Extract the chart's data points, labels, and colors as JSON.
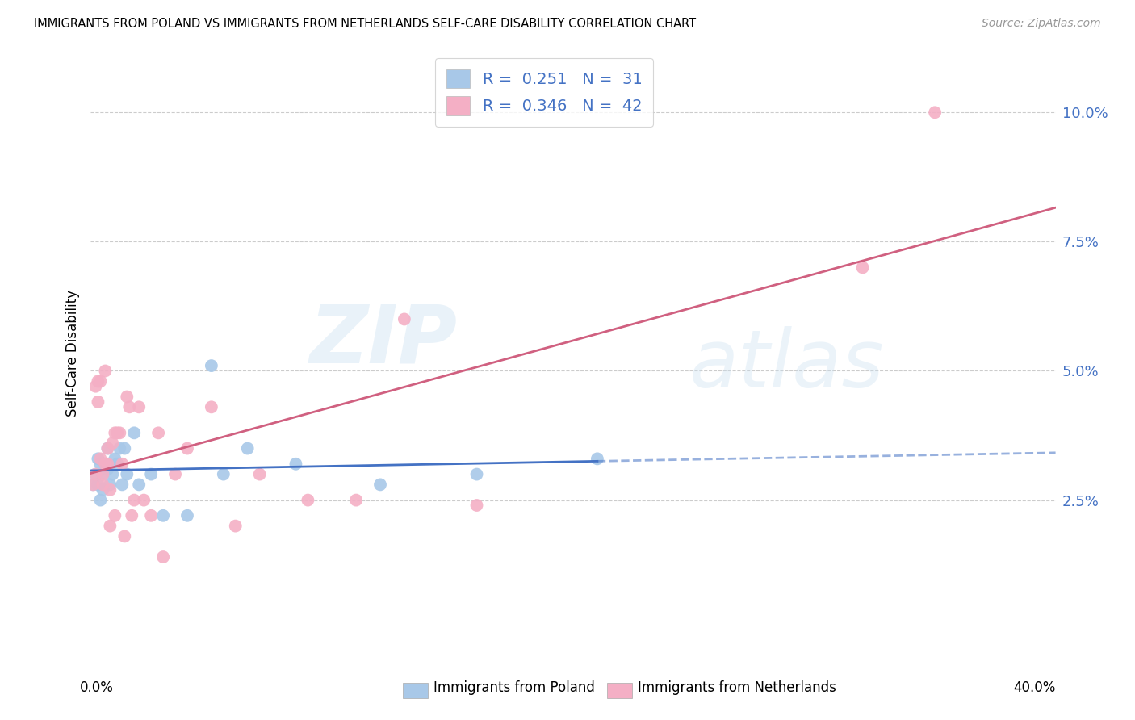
{
  "title": "IMMIGRANTS FROM POLAND VS IMMIGRANTS FROM NETHERLANDS SELF-CARE DISABILITY CORRELATION CHART",
  "source": "Source: ZipAtlas.com",
  "ylabel": "Self-Care Disability",
  "ytick_labels": [
    "2.5%",
    "5.0%",
    "7.5%",
    "10.0%"
  ],
  "ytick_values": [
    0.025,
    0.05,
    0.075,
    0.1
  ],
  "xlim": [
    0.0,
    0.4
  ],
  "ylim": [
    -0.005,
    0.112
  ],
  "legend_poland_R": "0.251",
  "legend_poland_N": "31",
  "legend_netherlands_R": "0.346",
  "legend_netherlands_N": "42",
  "poland_color": "#a8c8e8",
  "netherlands_color": "#f4afc5",
  "poland_line_color": "#4472C4",
  "netherlands_line_color": "#d06080",
  "poland_x": [
    0.001,
    0.002,
    0.003,
    0.003,
    0.004,
    0.004,
    0.005,
    0.005,
    0.006,
    0.007,
    0.007,
    0.008,
    0.009,
    0.01,
    0.011,
    0.012,
    0.013,
    0.014,
    0.015,
    0.018,
    0.02,
    0.025,
    0.03,
    0.04,
    0.05,
    0.055,
    0.065,
    0.085,
    0.12,
    0.16,
    0.21
  ],
  "poland_y": [
    0.028,
    0.03,
    0.033,
    0.028,
    0.032,
    0.025,
    0.03,
    0.027,
    0.032,
    0.031,
    0.035,
    0.028,
    0.03,
    0.033,
    0.032,
    0.035,
    0.028,
    0.035,
    0.03,
    0.038,
    0.028,
    0.03,
    0.022,
    0.022,
    0.051,
    0.03,
    0.035,
    0.032,
    0.028,
    0.03,
    0.033
  ],
  "netherlands_x": [
    0.001,
    0.002,
    0.002,
    0.003,
    0.003,
    0.004,
    0.004,
    0.005,
    0.005,
    0.006,
    0.006,
    0.007,
    0.007,
    0.008,
    0.008,
    0.009,
    0.01,
    0.01,
    0.011,
    0.012,
    0.013,
    0.014,
    0.015,
    0.016,
    0.017,
    0.018,
    0.02,
    0.022,
    0.025,
    0.028,
    0.03,
    0.035,
    0.04,
    0.05,
    0.06,
    0.07,
    0.09,
    0.11,
    0.13,
    0.16,
    0.32,
    0.35
  ],
  "netherlands_y": [
    0.028,
    0.047,
    0.03,
    0.048,
    0.044,
    0.048,
    0.033,
    0.03,
    0.028,
    0.032,
    0.05,
    0.035,
    0.032,
    0.027,
    0.02,
    0.036,
    0.038,
    0.022,
    0.038,
    0.038,
    0.032,
    0.018,
    0.045,
    0.043,
    0.022,
    0.025,
    0.043,
    0.025,
    0.022,
    0.038,
    0.014,
    0.03,
    0.035,
    0.043,
    0.02,
    0.03,
    0.025,
    0.025,
    0.06,
    0.024,
    0.07,
    0.1
  ],
  "poland_line_solid_end": 0.21,
  "poland_line_dash_start": 0.21,
  "poland_line_end": 0.4
}
